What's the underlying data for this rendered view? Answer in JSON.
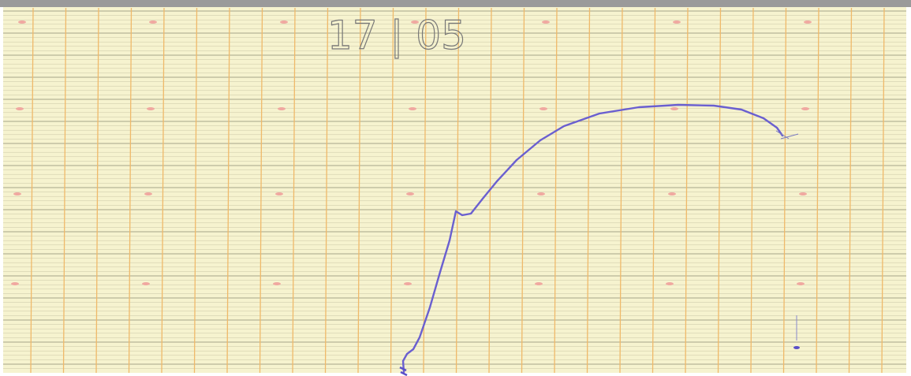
{
  "annotation": "17 | 05"
}
